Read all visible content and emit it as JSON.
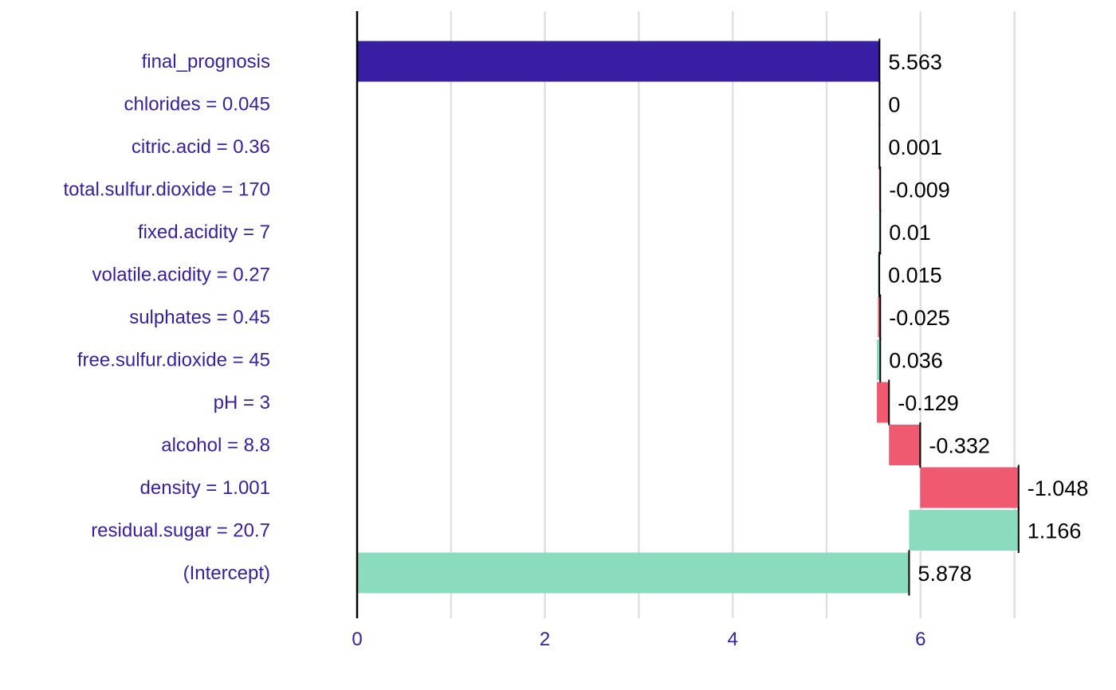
{
  "chart_data": {
    "type": "bar",
    "subtype": "waterfall",
    "title": "",
    "xlabel": "",
    "ylabel": "",
    "xlim": [
      0,
      7.2
    ],
    "x_ticks": [
      "0",
      "2",
      "4",
      "6"
    ],
    "x_tick_values": [
      0,
      2,
      4,
      6
    ],
    "grid": true,
    "legend": "none",
    "colors": {
      "positive": "#8bdcbe",
      "negative": "#f05a71",
      "prediction": "#371ea3",
      "label_text": "#371ea3",
      "value_text": "#000000",
      "grid": "#e0e0e0"
    },
    "bars": [
      {
        "label": "final_prognosis",
        "value_label": "5.563",
        "start": 0,
        "end": 5.563,
        "kind": "prediction"
      },
      {
        "label": "chlorides = 0.045",
        "value_label": "0",
        "start": 5.563,
        "end": 5.563,
        "kind": "negative"
      },
      {
        "label": "citric.acid = 0.36",
        "value_label": "0.001",
        "start": 5.562,
        "end": 5.563,
        "kind": "positive"
      },
      {
        "label": "total.sulfur.dioxide = 170",
        "value_label": "-0.009",
        "start": 5.562,
        "end": 5.571,
        "kind": "negative"
      },
      {
        "label": "fixed.acidity = 7",
        "value_label": "0.01",
        "start": 5.561,
        "end": 5.571,
        "kind": "positive"
      },
      {
        "label": "volatile.acidity = 0.27",
        "value_label": "0.015",
        "start": 5.546,
        "end": 5.561,
        "kind": "positive"
      },
      {
        "label": "sulphates = 0.45",
        "value_label": "-0.025",
        "start": 5.546,
        "end": 5.571,
        "kind": "negative"
      },
      {
        "label": "free.sulfur.dioxide = 45",
        "value_label": "0.036",
        "start": 5.535,
        "end": 5.571,
        "kind": "positive"
      },
      {
        "label": "pH = 3",
        "value_label": "-0.129",
        "start": 5.535,
        "end": 5.664,
        "kind": "negative"
      },
      {
        "label": "alcohol = 8.8",
        "value_label": "-0.332",
        "start": 5.664,
        "end": 5.996,
        "kind": "negative"
      },
      {
        "label": "density = 1.001",
        "value_label": "-1.048",
        "start": 5.996,
        "end": 7.044,
        "kind": "negative"
      },
      {
        "label": "residual.sugar = 20.7",
        "value_label": "1.166",
        "start": 5.878,
        "end": 7.044,
        "kind": "positive"
      },
      {
        "label": "(Intercept)",
        "value_label": "5.878",
        "start": 0,
        "end": 5.878,
        "kind": "positive"
      }
    ]
  }
}
